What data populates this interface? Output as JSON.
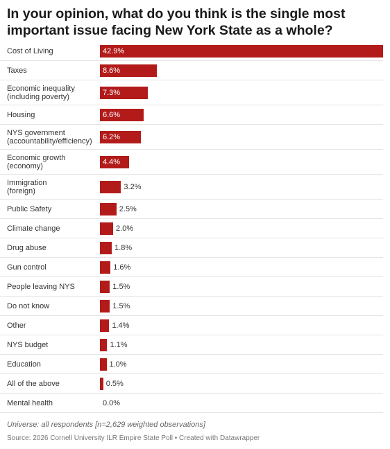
{
  "chart_data": {
    "type": "bar",
    "orientation": "horizontal",
    "title": "In your opinion, what do you think is the single most important issue facing New York State as a whole?",
    "categories": [
      "Cost of Living",
      "Taxes",
      "Economic inequality\n(including poverty)",
      "Housing",
      "NYS government\n(accountability/efficiency)",
      "Economic growth\n(economy)",
      "Immigration\n(foreign)",
      "Public Safety",
      "Climate change",
      "Drug abuse",
      "Gun control",
      "People leaving NYS",
      "Do not know",
      "Other",
      "NYS budget",
      "Education",
      "All of the above",
      "Mental health"
    ],
    "values": [
      42.9,
      8.6,
      7.3,
      6.6,
      6.2,
      4.4,
      3.2,
      2.5,
      2.0,
      1.8,
      1.6,
      1.5,
      1.5,
      1.4,
      1.1,
      1.0,
      0.5,
      0.0
    ],
    "value_labels": [
      "42.9%",
      "8.6%",
      "7.3%",
      "6.6%",
      "6.2%",
      "4.4%",
      "3.2%",
      "2.5%",
      "2.0%",
      "1.8%",
      "1.6%",
      "1.5%",
      "1.5%",
      "1.4%",
      "1.1%",
      "1.0%",
      "0.5%",
      "0.0%"
    ],
    "color": "#b31b1b",
    "notes": "Universe: all respondents [n=2,629 weighted observations]",
    "source": "Source: 2026 Cornell University ILR Empire State Poll • Created with Datawrapper"
  }
}
